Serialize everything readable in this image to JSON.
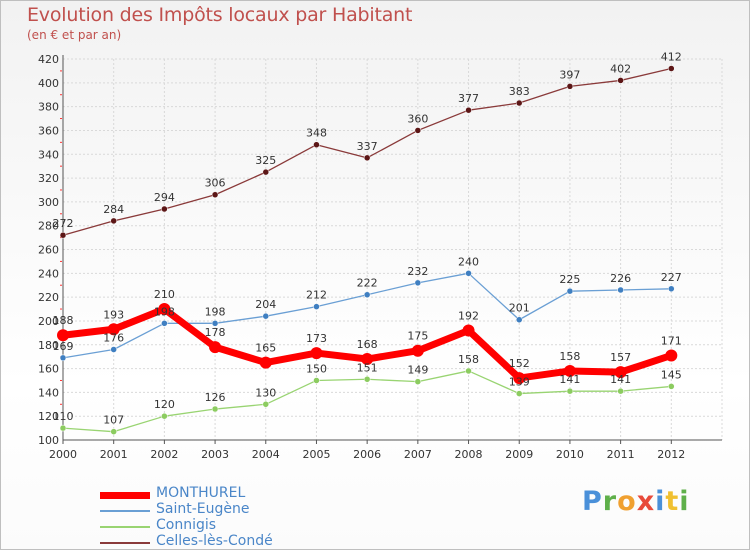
{
  "header": {
    "title": "Evolution des Impôts locaux par Habitant",
    "subtitle": "(en € et par an)"
  },
  "logo": {
    "text": "Proxiti",
    "letters": [
      {
        "char": "P",
        "color": "#4a90d9"
      },
      {
        "char": "r",
        "color": "#5fb04a"
      },
      {
        "char": "o",
        "color": "#f0a030"
      },
      {
        "char": "x",
        "color": "#e84a3a"
      },
      {
        "char": "i",
        "color": "#4a90d9"
      },
      {
        "char": "t",
        "color": "#f0c030"
      },
      {
        "char": "i",
        "color": "#5fb04a"
      }
    ]
  },
  "chart_data": {
    "type": "line",
    "title": "Evolution des Impôts locaux par Habitant",
    "subtitle": "(en € et par an)",
    "xlabel": "",
    "ylabel": "",
    "x": [
      "2000",
      "2001",
      "2002",
      "2003",
      "2004",
      "2005",
      "2006",
      "2007",
      "2008",
      "2009",
      "2010",
      "2011",
      "2012"
    ],
    "ylim": [
      100,
      420
    ],
    "yticks": [
      100,
      120,
      140,
      160,
      180,
      200,
      220,
      240,
      260,
      280,
      300,
      320,
      340,
      360,
      380,
      400,
      420
    ],
    "grid": true,
    "legend_position": "bottom-left",
    "series": [
      {
        "name": "MONTHUREL",
        "values": [
          188,
          193,
          210,
          178,
          165,
          173,
          168,
          175,
          192,
          152,
          158,
          157,
          171
        ],
        "color": "#ff0000",
        "marker": "#ff0000",
        "width": 7,
        "radius": 6
      },
      {
        "name": "Saint-Eugène",
        "values": [
          169,
          176,
          198,
          198,
          204,
          212,
          222,
          232,
          240,
          201,
          225,
          226,
          227
        ],
        "color": "#6a9fd4",
        "marker": "#3f7fc1",
        "width": 1.3,
        "radius": 3
      },
      {
        "name": "Connigis",
        "values": [
          110,
          107,
          120,
          126,
          130,
          150,
          151,
          149,
          158,
          139,
          141,
          141,
          145
        ],
        "color": "#99d472",
        "marker": "#8ccc60",
        "width": 1.3,
        "radius": 3
      },
      {
        "name": "Celles-lès-Condé",
        "values": [
          272,
          284,
          294,
          306,
          325,
          348,
          337,
          360,
          377,
          383,
          397,
          402,
          412
        ],
        "color": "#8a3a3a",
        "marker": "#5c1616",
        "width": 1.3,
        "radius": 3
      }
    ],
    "data_labels": [
      [
        "188",
        "193",
        "210",
        "178",
        "165",
        "173",
        "168",
        "175",
        "192",
        "152",
        "158",
        "157",
        "171"
      ],
      [
        "169",
        "176",
        "198",
        "198",
        "204",
        "212",
        "222",
        "232",
        "240",
        "201",
        "225",
        "226",
        "227"
      ],
      [
        "110",
        "107",
        "120",
        "126",
        "130",
        "150",
        "151",
        "149",
        "158",
        "139",
        "141",
        "141",
        "145"
      ],
      [
        "272",
        "284",
        "294",
        "306",
        "325",
        "348",
        "337",
        "360",
        "377",
        "383",
        "397",
        "402",
        "412"
      ]
    ]
  }
}
